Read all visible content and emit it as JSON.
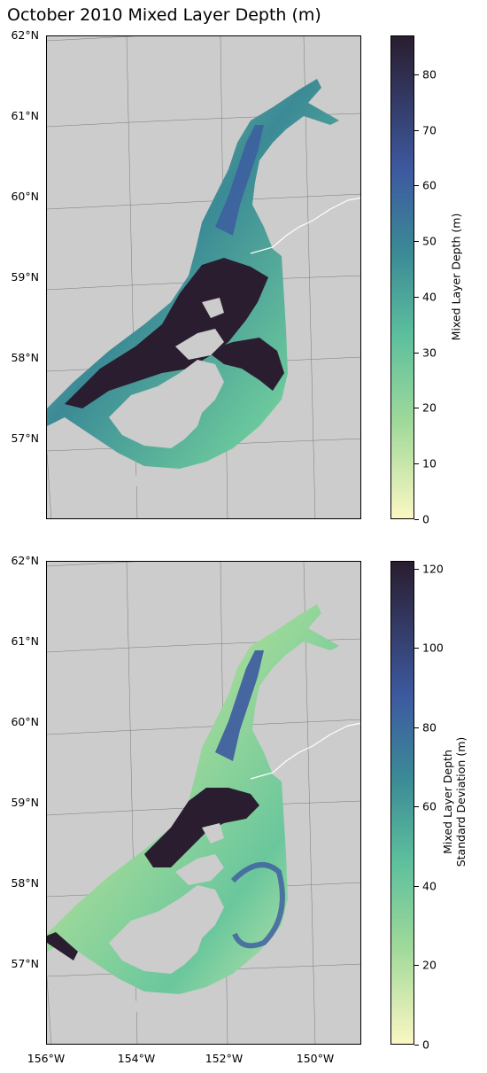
{
  "title": "October 2010 Mixed Layer Depth (m)",
  "panels": [
    {
      "colorbar_label": "Mixed Layer Depth (m)",
      "colorbar_ticks": [
        "0",
        "10",
        "20",
        "30",
        "40",
        "50",
        "60",
        "70",
        "80"
      ],
      "colorbar_max": 87
    },
    {
      "colorbar_label_line1": "Mixed Layer Depth",
      "colorbar_label_line2": "Standard Deviation (m)",
      "colorbar_ticks": [
        "0",
        "20",
        "40",
        "60",
        "80",
        "100",
        "120"
      ],
      "colorbar_max": 122
    }
  ],
  "lat_labels": [
    "62°N",
    "61°N",
    "60°N",
    "59°N",
    "58°N",
    "57°N"
  ],
  "lon_labels": [
    "156°W",
    "154°W",
    "152°W",
    "150°W"
  ],
  "colors": {
    "land": "#cccccc",
    "cmap_low": "#fbf7c2",
    "cmap_mid1": "#9fd99a",
    "cmap_mid2": "#5cbf9d",
    "cmap_mid3": "#3b8a96",
    "cmap_mid4": "#3d5aa0",
    "cmap_high": "#2a1d2f"
  },
  "colormap": "deep"
}
